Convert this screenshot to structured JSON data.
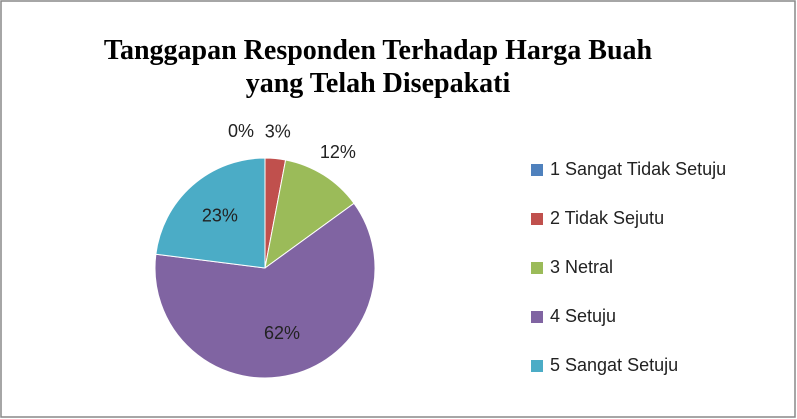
{
  "chart_data": {
    "type": "pie",
    "title": "Tanggapan Responden Terhadap  Harga Buah yang Telah Disepakati",
    "categories": [
      "1 Sangat Tidak Setuju",
      "2 Tidak Sejutu",
      "3 Netral",
      "4 Setuju",
      "5 Sangat Setuju"
    ],
    "values": [
      0,
      3,
      12,
      62,
      23
    ],
    "value_labels": [
      "0%",
      "3%",
      "12%",
      "62%",
      "23%"
    ],
    "colors": [
      "#4f81bd",
      "#c0504d",
      "#9bbb59",
      "#8064a2",
      "#4bacc6"
    ],
    "legend": "right"
  }
}
